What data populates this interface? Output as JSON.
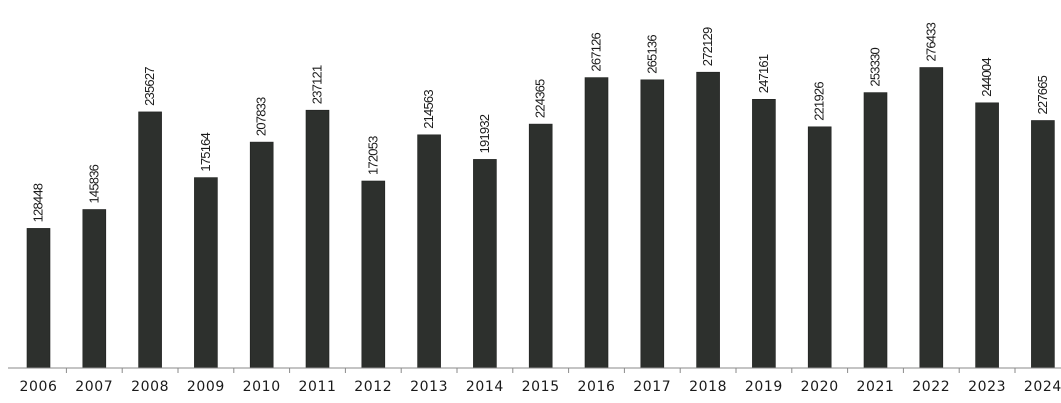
{
  "chart_data": {
    "type": "bar",
    "categories": [
      "2006",
      "2007",
      "2008",
      "2009",
      "2010",
      "2011",
      "2012",
      "2013",
      "2014",
      "2015",
      "2016",
      "2017",
      "2018",
      "2019",
      "2020",
      "2021",
      "2022",
      "2023",
      "2024"
    ],
    "values": [
      128448,
      145836,
      235627,
      175164,
      207833,
      237121,
      172053,
      214563,
      191932,
      224365,
      267126,
      265136,
      272129,
      247161,
      221926,
      253330,
      276433,
      244004,
      227665
    ],
    "data_labels": [
      "128448",
      "145836",
      "235627",
      "175164",
      "207833",
      "237121",
      "172053",
      "214563",
      "191932",
      "224365",
      "267126",
      "265136",
      "272129",
      "247161",
      "221926",
      "253330",
      "276433",
      "244004",
      "227665"
    ],
    "title": "",
    "xlabel": "",
    "ylabel": "",
    "ylim": [
      0,
      290000
    ],
    "grid": false,
    "legend": "none",
    "bar_color": "#2d302d"
  }
}
